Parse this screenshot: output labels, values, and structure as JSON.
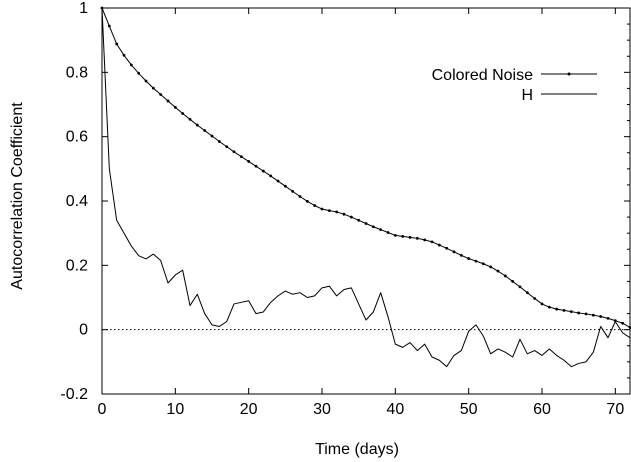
{
  "chart_data": {
    "type": "line",
    "xlabel": "Time (days)",
    "ylabel": "Autocorrelation Coefficient",
    "xlim": [
      0,
      72
    ],
    "ylim": [
      -0.2,
      1
    ],
    "x_ticks": [
      0,
      10,
      20,
      30,
      40,
      50,
      60,
      70
    ],
    "y_ticks": [
      -0.2,
      0,
      0.2,
      0.4,
      0.6,
      0.8,
      1
    ],
    "y_tick_labels": [
      "-0.2",
      "0",
      "0.2",
      "0.4",
      "0.6",
      "0.8",
      "1"
    ],
    "grid": false,
    "legend_position": "top-right",
    "reference_line": {
      "y": 0,
      "style": "dotted"
    },
    "series": [
      {
        "name": "Colored Noise",
        "marker": "point",
        "x": [
          0,
          1,
          2,
          3,
          4,
          5,
          6,
          7,
          8,
          9,
          10,
          11,
          12,
          13,
          14,
          15,
          16,
          17,
          18,
          19,
          20,
          21,
          22,
          23,
          24,
          25,
          26,
          27,
          28,
          29,
          30,
          31,
          32,
          33,
          34,
          35,
          36,
          37,
          38,
          39,
          40,
          41,
          42,
          43,
          44,
          45,
          46,
          47,
          48,
          49,
          50,
          51,
          52,
          53,
          54,
          55,
          56,
          57,
          58,
          59,
          60,
          61,
          62,
          63,
          64,
          65,
          66,
          67,
          68,
          69,
          70,
          71,
          72
        ],
        "values": [
          1.0,
          0.944,
          0.888,
          0.853,
          0.823,
          0.797,
          0.773,
          0.751,
          0.731,
          0.711,
          0.691,
          0.672,
          0.654,
          0.636,
          0.619,
          0.602,
          0.585,
          0.569,
          0.553,
          0.538,
          0.523,
          0.508,
          0.493,
          0.478,
          0.462,
          0.446,
          0.43,
          0.414,
          0.399,
          0.386,
          0.375,
          0.37,
          0.366,
          0.359,
          0.35,
          0.34,
          0.33,
          0.32,
          0.311,
          0.302,
          0.293,
          0.29,
          0.287,
          0.284,
          0.279,
          0.273,
          0.263,
          0.253,
          0.242,
          0.231,
          0.221,
          0.213,
          0.205,
          0.195,
          0.182,
          0.167,
          0.15,
          0.133,
          0.115,
          0.097,
          0.08,
          0.07,
          0.064,
          0.06,
          0.056,
          0.052,
          0.049,
          0.045,
          0.041,
          0.035,
          0.028,
          0.02,
          0.007
        ]
      },
      {
        "name": "H",
        "marker": "none",
        "x": [
          0,
          1,
          2,
          3,
          4,
          5,
          6,
          7,
          8,
          9,
          10,
          11,
          12,
          13,
          14,
          15,
          16,
          17,
          18,
          19,
          20,
          21,
          22,
          23,
          24,
          25,
          26,
          27,
          28,
          29,
          30,
          31,
          32,
          33,
          34,
          35,
          36,
          37,
          38,
          39,
          40,
          41,
          42,
          43,
          44,
          45,
          46,
          47,
          48,
          49,
          50,
          51,
          52,
          53,
          54,
          55,
          56,
          57,
          58,
          59,
          60,
          61,
          62,
          63,
          64,
          65,
          66,
          67,
          68,
          69,
          70,
          71,
          72
        ],
        "values": [
          1.0,
          0.5,
          0.34,
          0.3,
          0.26,
          0.23,
          0.22,
          0.235,
          0.215,
          0.145,
          0.17,
          0.185,
          0.075,
          0.11,
          0.05,
          0.015,
          0.01,
          0.025,
          0.08,
          0.085,
          0.09,
          0.05,
          0.055,
          0.085,
          0.105,
          0.12,
          0.11,
          0.115,
          0.1,
          0.105,
          0.13,
          0.135,
          0.105,
          0.125,
          0.13,
          0.08,
          0.03,
          0.055,
          0.115,
          0.04,
          -0.045,
          -0.055,
          -0.04,
          -0.065,
          -0.045,
          -0.085,
          -0.095,
          -0.115,
          -0.08,
          -0.065,
          -0.005,
          0.015,
          -0.02,
          -0.075,
          -0.06,
          -0.07,
          -0.085,
          -0.03,
          -0.075,
          -0.065,
          -0.08,
          -0.06,
          -0.08,
          -0.095,
          -0.115,
          -0.105,
          -0.1,
          -0.07,
          0.01,
          -0.025,
          0.025,
          -0.01,
          -0.025
        ]
      }
    ]
  }
}
